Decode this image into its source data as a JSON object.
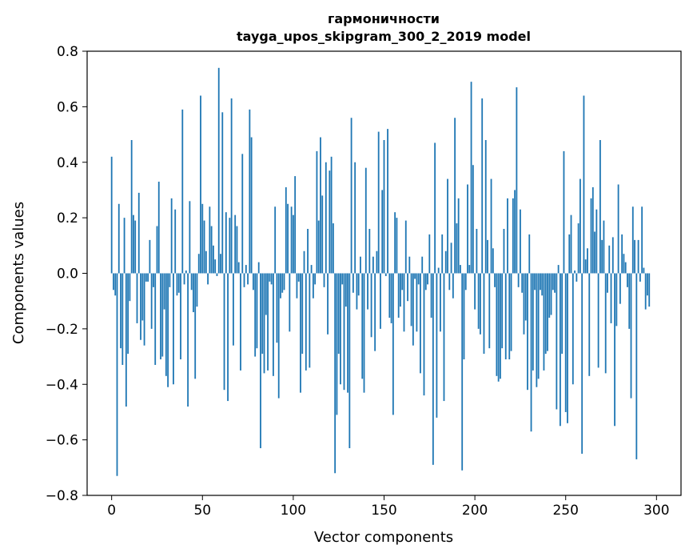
{
  "chart_data": {
    "type": "bar",
    "title_lines": [
      "гармоничности",
      "tayga_upos_skipgram_300_2_2019 model"
    ],
    "xlabel": "Vector components",
    "ylabel": "Components values",
    "xlim": [
      -13.5,
      313.5
    ],
    "ylim": [
      -0.8,
      0.8
    ],
    "xticks": [
      0,
      50,
      100,
      150,
      200,
      250,
      300
    ],
    "yticks": [
      -0.8,
      -0.6,
      -0.4,
      -0.2,
      0.0,
      0.2,
      0.4,
      0.6,
      0.8
    ],
    "ytick_labels": [
      "−0.8",
      "−0.6",
      "−0.4",
      "−0.2",
      "0.0",
      "0.2",
      "0.4",
      "0.6",
      "0.8"
    ],
    "bar_color": "#1f77b4",
    "values": [
      0.42,
      -0.06,
      -0.08,
      -0.73,
      0.25,
      -0.27,
      -0.33,
      0.2,
      -0.48,
      -0.29,
      -0.1,
      0.48,
      0.21,
      0.19,
      -0.18,
      0.29,
      -0.24,
      -0.17,
      -0.26,
      -0.03,
      -0.03,
      0.12,
      -0.2,
      -0.05,
      -0.33,
      0.17,
      0.33,
      -0.31,
      -0.3,
      -0.13,
      -0.37,
      -0.41,
      -0.05,
      0.27,
      -0.4,
      0.23,
      -0.08,
      -0.07,
      -0.31,
      0.59,
      -0.04,
      0.01,
      -0.48,
      0.26,
      -0.06,
      -0.14,
      -0.38,
      -0.12,
      0.07,
      0.64,
      0.25,
      0.19,
      0.08,
      -0.04,
      0.24,
      0.17,
      0.1,
      0.05,
      -0.01,
      0.74,
      0.07,
      0.58,
      -0.42,
      0.22,
      -0.46,
      0.2,
      0.63,
      -0.26,
      0.21,
      0.17,
      0.04,
      -0.35,
      0.43,
      -0.05,
      0.03,
      -0.04,
      0.59,
      0.49,
      -0.06,
      -0.3,
      -0.27,
      0.04,
      -0.63,
      -0.29,
      -0.36,
      -0.15,
      -0.35,
      -0.03,
      -0.04,
      -0.37,
      0.24,
      -0.25,
      -0.45,
      -0.09,
      -0.07,
      -0.06,
      0.31,
      0.25,
      -0.21,
      0.24,
      0.21,
      0.35,
      -0.09,
      -0.03,
      -0.43,
      -0.29,
      0.08,
      -0.35,
      0.16,
      -0.34,
      0.03,
      -0.09,
      -0.04,
      0.44,
      0.19,
      0.49,
      0.28,
      -0.05,
      0.4,
      -0.22,
      0.37,
      0.42,
      0.18,
      -0.72,
      -0.51,
      -0.29,
      -0.4,
      -0.04,
      -0.42,
      -0.12,
      -0.43,
      -0.63,
      0.56,
      -0.07,
      0.4,
      -0.13,
      -0.08,
      0.06,
      -0.38,
      -0.43,
      0.38,
      -0.13,
      0.16,
      -0.23,
      0.06,
      -0.28,
      0.08,
      0.51,
      -0.2,
      0.3,
      0.48,
      -0.01,
      0.52,
      -0.16,
      -0.18,
      -0.51,
      0.22,
      0.2,
      -0.16,
      -0.12,
      -0.06,
      -0.21,
      0.19,
      -0.1,
      0.06,
      -0.19,
      -0.26,
      -0.02,
      -0.21,
      -0.04,
      -0.36,
      0.06,
      -0.44,
      -0.06,
      -0.04,
      0.14,
      -0.16,
      -0.69,
      0.47,
      -0.52,
      0.02,
      -0.21,
      0.14,
      -0.46,
      0.08,
      0.34,
      -0.06,
      0.11,
      -0.09,
      0.56,
      0.18,
      0.27,
      0.03,
      -0.71,
      -0.31,
      -0.06,
      0.32,
      0.03,
      0.69,
      0.39,
      -0.13,
      0.16,
      -0.2,
      -0.22,
      0.63,
      -0.29,
      0.48,
      0.12,
      -0.27,
      0.34,
      0.09,
      -0.05,
      -0.37,
      -0.39,
      -0.38,
      -0.27,
      0.16,
      -0.31,
      0.27,
      -0.31,
      -0.28,
      0.27,
      0.3,
      0.67,
      -0.05,
      0.23,
      -0.07,
      -0.22,
      -0.17,
      -0.42,
      0.14,
      -0.57,
      -0.35,
      -0.06,
      -0.41,
      -0.38,
      -0.06,
      -0.08,
      -0.35,
      -0.29,
      -0.28,
      -0.16,
      -0.15,
      -0.06,
      -0.07,
      -0.49,
      0.03,
      -0.55,
      -0.29,
      0.44,
      -0.5,
      -0.54,
      0.14,
      0.21,
      -0.4,
      0.01,
      -0.03,
      0.18,
      0.34,
      -0.65,
      0.64,
      0.05,
      0.09,
      -0.37,
      0.27,
      0.31,
      0.15,
      0.23,
      -0.34,
      0.48,
      0.12,
      0.19,
      -0.36,
      -0.07,
      0.1,
      -0.18,
      0.13,
      -0.55,
      -0.19,
      0.32,
      -0.11,
      0.14,
      0.07,
      0.04,
      -0.05,
      -0.2,
      -0.45,
      0.24,
      0.12,
      -0.67,
      0.12,
      -0.03,
      0.24,
      0.02,
      -0.13,
      -0.08,
      -0.12
    ]
  }
}
